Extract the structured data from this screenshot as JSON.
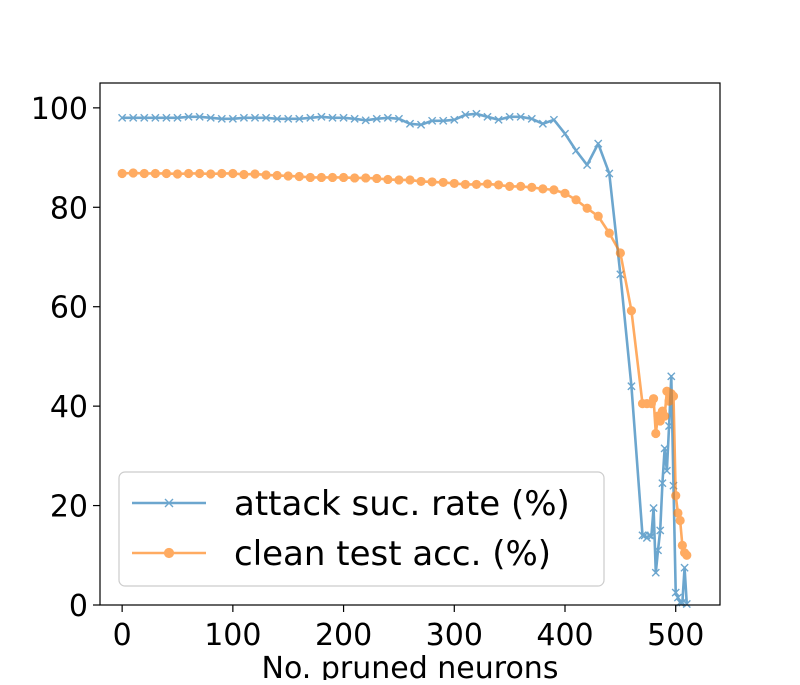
{
  "chart_data": {
    "type": "line",
    "title": "",
    "xlabel": "No. pruned neurons",
    "ylabel": "",
    "xlim": [
      -20,
      540
    ],
    "ylim": [
      0,
      105
    ],
    "xticks": [
      0,
      100,
      200,
      300,
      400,
      500
    ],
    "yticks": [
      0,
      20,
      40,
      60,
      80,
      100
    ],
    "grid": false,
    "legend_position": "lower-left",
    "series": [
      {
        "name": "attack suc. rate (%)",
        "color": "#1f77b4",
        "marker": "x",
        "x": [
          0,
          10,
          20,
          30,
          40,
          50,
          60,
          70,
          80,
          90,
          100,
          110,
          120,
          130,
          140,
          150,
          160,
          170,
          180,
          190,
          200,
          210,
          220,
          230,
          240,
          250,
          260,
          270,
          280,
          290,
          300,
          310,
          320,
          330,
          340,
          350,
          360,
          370,
          380,
          390,
          400,
          410,
          420,
          430,
          440,
          450,
          460,
          470,
          472,
          474,
          476,
          478,
          480,
          482,
          484,
          486,
          488,
          490,
          492,
          494,
          496,
          498,
          500,
          502,
          504,
          506,
          508,
          510
        ],
        "values": [
          98.0,
          98.0,
          98.0,
          98.0,
          98.0,
          98.0,
          98.2,
          98.2,
          98.0,
          97.8,
          97.8,
          98.0,
          98.0,
          98.0,
          97.8,
          97.8,
          97.8,
          98.0,
          98.2,
          98.0,
          98.0,
          97.8,
          97.5,
          97.8,
          98.0,
          97.8,
          96.8,
          96.6,
          97.4,
          97.4,
          97.6,
          98.6,
          98.8,
          98.2,
          97.6,
          98.2,
          98.2,
          97.8,
          96.8,
          97.6,
          94.8,
          91.4,
          88.5,
          92.8,
          86.8,
          66.5,
          44.0,
          14.0,
          14.0,
          13.5,
          14.0,
          13.8,
          19.5,
          6.5,
          11.0,
          15.0,
          24.5,
          31.5,
          27.0,
          36.0,
          46.0,
          24.0,
          2.5,
          1.5,
          0.5,
          0.5,
          7.5,
          0.2
        ]
      },
      {
        "name": "clean test acc. (%)",
        "color": "#ff7f0e",
        "marker": "o",
        "x": [
          0,
          10,
          20,
          30,
          40,
          50,
          60,
          70,
          80,
          90,
          100,
          110,
          120,
          130,
          140,
          150,
          160,
          170,
          180,
          190,
          200,
          210,
          220,
          230,
          240,
          250,
          260,
          270,
          280,
          290,
          300,
          310,
          320,
          330,
          340,
          350,
          360,
          370,
          380,
          390,
          400,
          410,
          420,
          430,
          440,
          450,
          460,
          470,
          474,
          478,
          480,
          482,
          484,
          486,
          488,
          490,
          492,
          494,
          496,
          498,
          500,
          502,
          504,
          506,
          508,
          510
        ],
        "values": [
          86.8,
          86.9,
          86.8,
          86.8,
          86.8,
          86.7,
          86.8,
          86.8,
          86.7,
          86.8,
          86.8,
          86.6,
          86.7,
          86.5,
          86.4,
          86.3,
          86.2,
          86.0,
          86.0,
          86.0,
          86.0,
          85.9,
          85.9,
          85.8,
          85.6,
          85.5,
          85.5,
          85.2,
          85.1,
          85.0,
          84.8,
          84.6,
          84.6,
          84.7,
          84.5,
          84.2,
          84.2,
          84.0,
          83.7,
          83.5,
          82.8,
          81.5,
          79.8,
          78.2,
          74.8,
          70.8,
          59.2,
          40.5,
          40.5,
          40.5,
          41.5,
          34.5,
          38.0,
          37.0,
          39.0,
          38.0,
          43.0,
          41.0,
          42.5,
          42.0,
          22.0,
          18.5,
          17.0,
          12.0,
          10.5,
          10.0
        ]
      }
    ]
  }
}
